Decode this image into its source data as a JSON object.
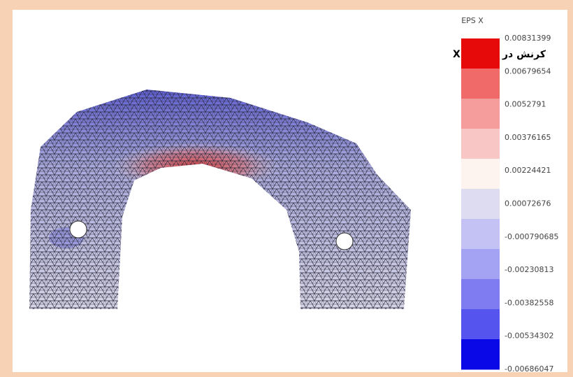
{
  "legend": {
    "title": "EPS X",
    "labels": [
      0.00831399,
      0.00679654,
      0.0052791,
      0.00376165,
      0.00224421,
      0.00072676,
      -0.000790685,
      -0.00230813,
      -0.00382558,
      -0.00534302,
      -0.00686047
    ],
    "colors": [
      "#e60a0a",
      "#f06a6a",
      "#f59c9c",
      "#f9c6c6",
      "#fdf4f0",
      "#dedcf0",
      "#c4c2f4",
      "#a4a2f2",
      "#7e7cf0",
      "#5654ee",
      "#0a08e6"
    ]
  },
  "annotation": "کرنش در راستای X"
}
